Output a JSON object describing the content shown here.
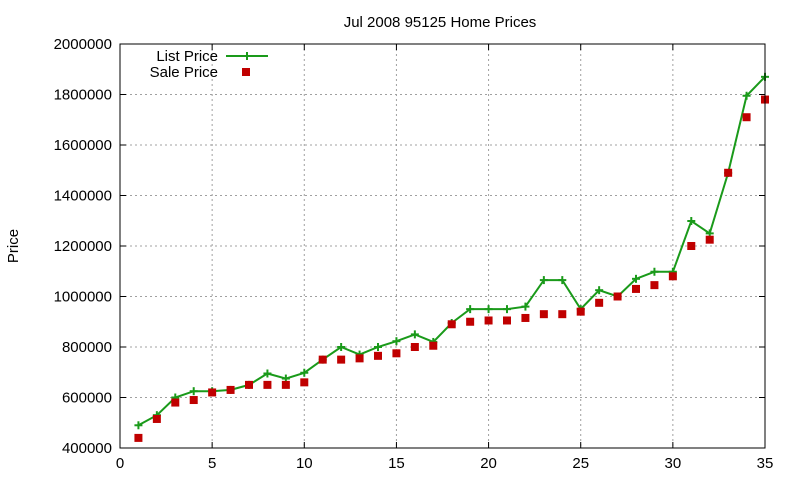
{
  "chart_data": {
    "type": "line",
    "title": "Jul 2008 95125 Home Prices",
    "xlabel": "",
    "ylabel": "Price",
    "xlim": [
      0,
      35
    ],
    "ylim": [
      400000,
      2000000
    ],
    "xticks": [
      0,
      5,
      10,
      15,
      20,
      25,
      30,
      35
    ],
    "yticks": [
      400000,
      600000,
      800000,
      1000000,
      1200000,
      1400000,
      1600000,
      1800000,
      2000000
    ],
    "grid": true,
    "legend": "top-left",
    "series": [
      {
        "name": "List Price",
        "style": "line-plus",
        "color": "#1a9a1a",
        "points": [
          [
            1,
            490000
          ],
          [
            2,
            530000
          ],
          [
            3,
            600000
          ],
          [
            4,
            625000
          ],
          [
            5,
            625000
          ],
          [
            6,
            630000
          ],
          [
            7,
            650000
          ],
          [
            8,
            695000
          ],
          [
            9,
            675000
          ],
          [
            10,
            698000
          ],
          [
            11,
            750000
          ],
          [
            12,
            800000
          ],
          [
            13,
            770000
          ],
          [
            14,
            800000
          ],
          [
            15,
            823000
          ],
          [
            16,
            850000
          ],
          [
            17,
            820000
          ],
          [
            18,
            895000
          ],
          [
            19,
            950000
          ],
          [
            20,
            950000
          ],
          [
            21,
            950000
          ],
          [
            22,
            960000
          ],
          [
            23,
            1065000
          ],
          [
            24,
            1065000
          ],
          [
            25,
            950000
          ],
          [
            26,
            1025000
          ],
          [
            27,
            1000000
          ],
          [
            28,
            1070000
          ],
          [
            29,
            1098000
          ],
          [
            30,
            1098000
          ],
          [
            31,
            1299000
          ],
          [
            32,
            1250000
          ],
          [
            33,
            1489000
          ],
          [
            34,
            1795000
          ],
          [
            35,
            1870000
          ]
        ]
      },
      {
        "name": "Sale Price",
        "style": "square",
        "color": "#c00000",
        "points": [
          [
            1,
            440000
          ],
          [
            2,
            515000
          ],
          [
            3,
            580000
          ],
          [
            4,
            590000
          ],
          [
            5,
            620000
          ],
          [
            6,
            630000
          ],
          [
            7,
            650000
          ],
          [
            8,
            650000
          ],
          [
            9,
            650000
          ],
          [
            10,
            660000
          ],
          [
            11,
            750000
          ],
          [
            12,
            750000
          ],
          [
            13,
            755000
          ],
          [
            14,
            765000
          ],
          [
            15,
            775000
          ],
          [
            16,
            800000
          ],
          [
            17,
            805000
          ],
          [
            18,
            890000
          ],
          [
            19,
            900000
          ],
          [
            20,
            905000
          ],
          [
            21,
            905000
          ],
          [
            22,
            915000
          ],
          [
            23,
            930000
          ],
          [
            24,
            930000
          ],
          [
            25,
            940000
          ],
          [
            26,
            975000
          ],
          [
            27,
            1000000
          ],
          [
            28,
            1030000
          ],
          [
            29,
            1045000
          ],
          [
            30,
            1080000
          ],
          [
            31,
            1200000
          ],
          [
            32,
            1225000
          ],
          [
            33,
            1490000
          ],
          [
            34,
            1710000
          ],
          [
            35,
            1780000
          ]
        ]
      }
    ]
  }
}
